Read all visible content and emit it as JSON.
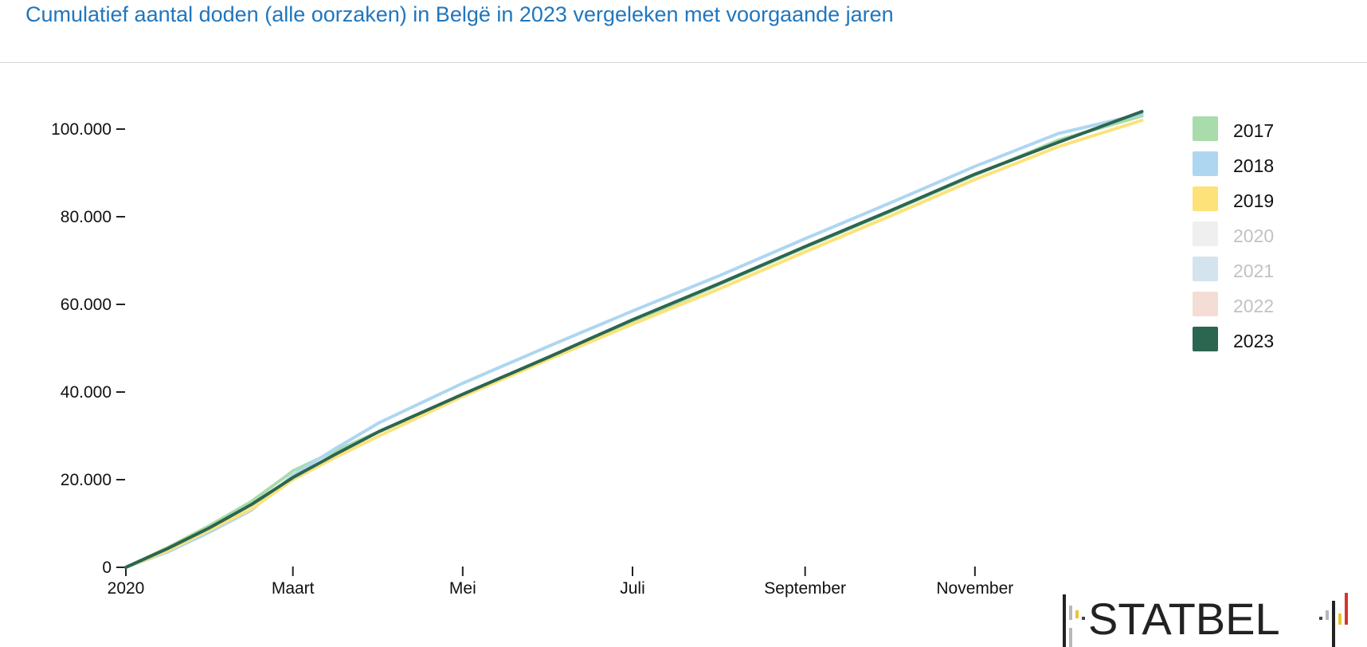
{
  "title": "Cumulatief aantal doden (alle oorzaken) in Belgë in 2023 vergeleken met voorgaande jaren",
  "logo_text": "STATBEL",
  "chart_data": {
    "type": "line",
    "title": "Cumulatief aantal doden (alle oorzaken) in Belgë in 2023 vergeleken met voorgaande jaren",
    "x_ticks": [
      {
        "label": "2020",
        "day": 0
      },
      {
        "label": "Maart",
        "day": 60
      },
      {
        "label": "Mei",
        "day": 121
      },
      {
        "label": "Juli",
        "day": 182
      },
      {
        "label": "September",
        "day": 244
      },
      {
        "label": "November",
        "day": 305
      }
    ],
    "y_ticks": [
      {
        "label": "0",
        "value": 0
      },
      {
        "label": "20.000",
        "value": 20000
      },
      {
        "label": "40.000",
        "value": 40000
      },
      {
        "label": "60.000",
        "value": 60000
      },
      {
        "label": "80.000",
        "value": 80000
      },
      {
        "label": "100.000",
        "value": 100000
      }
    ],
    "xlim": [
      0,
      366
    ],
    "ylim": [
      0,
      100000
    ],
    "legend_position": "right",
    "series": [
      {
        "name": "2017",
        "color": "#a8dcaa",
        "active": true,
        "points": [
          [
            0,
            0
          ],
          [
            15,
            4500
          ],
          [
            30,
            9500
          ],
          [
            45,
            15000
          ],
          [
            58,
            21000
          ],
          [
            60,
            22000
          ],
          [
            75,
            26500
          ],
          [
            91,
            31000
          ],
          [
            121,
            39500
          ],
          [
            152,
            48000
          ],
          [
            182,
            56000
          ],
          [
            213,
            64500
          ],
          [
            244,
            73000
          ],
          [
            274,
            81000
          ],
          [
            305,
            89500
          ],
          [
            335,
            97500
          ],
          [
            365,
            103000
          ]
        ]
      },
      {
        "name": "2018",
        "color": "#aed6f1",
        "active": true,
        "points": [
          [
            0,
            0
          ],
          [
            15,
            3500
          ],
          [
            30,
            8000
          ],
          [
            45,
            13000
          ],
          [
            60,
            21000
          ],
          [
            75,
            27000
          ],
          [
            91,
            33000
          ],
          [
            121,
            42000
          ],
          [
            152,
            50500
          ],
          [
            182,
            58500
          ],
          [
            213,
            66500
          ],
          [
            244,
            75000
          ],
          [
            274,
            83000
          ],
          [
            305,
            91500
          ],
          [
            335,
            99000
          ],
          [
            365,
            103500
          ]
        ]
      },
      {
        "name": "2019",
        "color": "#fde27a",
        "active": true,
        "points": [
          [
            0,
            0
          ],
          [
            15,
            3800
          ],
          [
            30,
            8500
          ],
          [
            45,
            13300
          ],
          [
            60,
            20000
          ],
          [
            75,
            25000
          ],
          [
            91,
            30000
          ],
          [
            121,
            39000
          ],
          [
            152,
            47500
          ],
          [
            182,
            55500
          ],
          [
            213,
            63500
          ],
          [
            244,
            72000
          ],
          [
            274,
            80000
          ],
          [
            305,
            88500
          ],
          [
            335,
            96000
          ],
          [
            365,
            102000
          ]
        ]
      },
      {
        "name": "2020",
        "color": "#efefef",
        "active": false,
        "points": []
      },
      {
        "name": "2021",
        "color": "#d4e4ef",
        "active": false,
        "points": []
      },
      {
        "name": "2022",
        "color": "#f3ddd5",
        "active": false,
        "points": []
      },
      {
        "name": "2023",
        "color": "#2c6650",
        "active": true,
        "points": [
          [
            0,
            0
          ],
          [
            15,
            4300
          ],
          [
            30,
            9000
          ],
          [
            45,
            14300
          ],
          [
            60,
            20500
          ],
          [
            75,
            25700
          ],
          [
            91,
            31000
          ],
          [
            121,
            39500
          ],
          [
            152,
            48000
          ],
          [
            182,
            56500
          ],
          [
            213,
            64700
          ],
          [
            244,
            73200
          ],
          [
            274,
            81200
          ],
          [
            305,
            89700
          ],
          [
            335,
            97000
          ],
          [
            365,
            104000
          ]
        ]
      }
    ]
  }
}
